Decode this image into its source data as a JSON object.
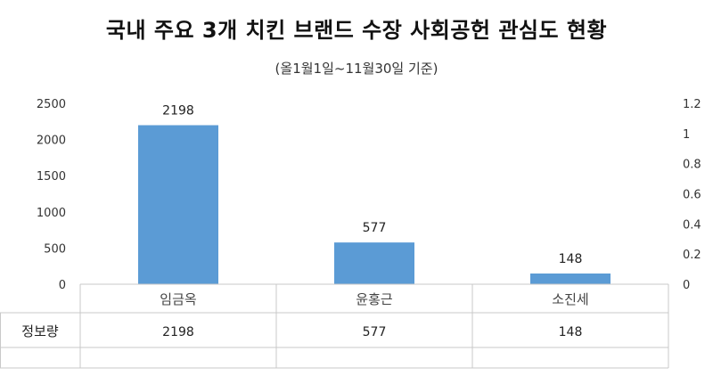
{
  "chart_data": {
    "type": "bar",
    "title": "국내 주요 3개 치킨 브랜드 수장 사회공헌 관심도 현황",
    "subtitle": "(올1월1일~11월30일 기준)",
    "categories": [
      "임금옥",
      "윤홍근",
      "소진세"
    ],
    "series": [
      {
        "name": "정보량",
        "values": [
          2198,
          577,
          148
        ]
      }
    ],
    "ylim": [
      0,
      2500
    ],
    "yticks": [
      0,
      500,
      1000,
      1500,
      2000,
      2500
    ],
    "y2lim": [
      0,
      1.2
    ],
    "y2ticks": [
      "0",
      "0.2",
      "0.4",
      "0.6",
      "0.8",
      "1",
      "1.2"
    ],
    "bar_color": "#5B9BD5",
    "grid": false,
    "data_table": true
  }
}
